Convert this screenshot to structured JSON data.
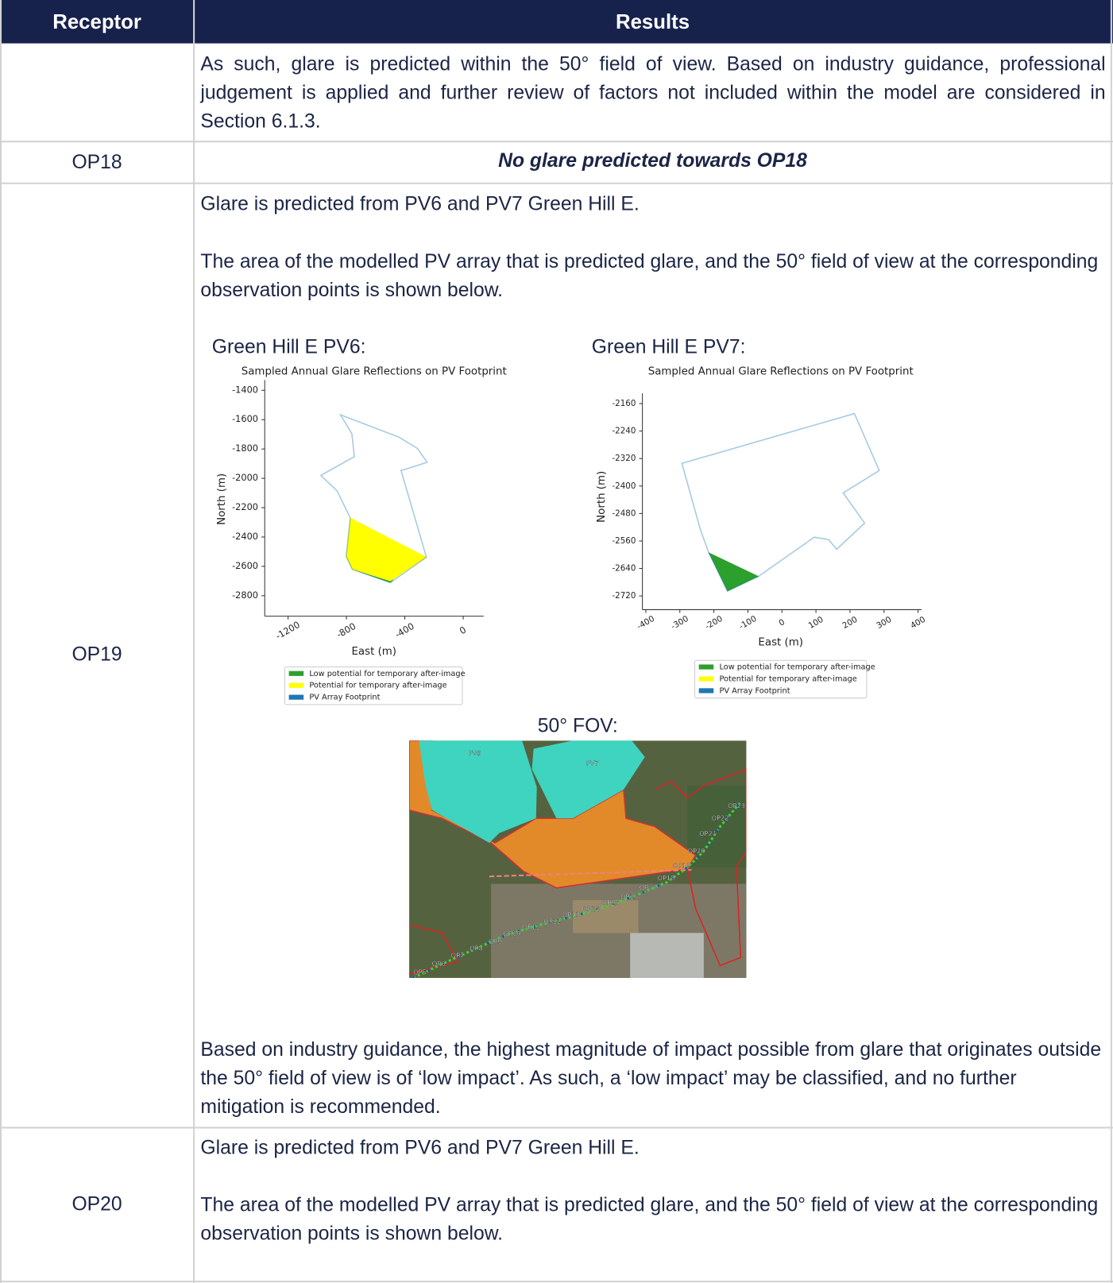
{
  "table": {
    "headers": [
      "Receptor",
      "Results"
    ],
    "rows": [
      {
        "results": {
          "paragraphs": [
            "As such, glare is predicted within the 50° field of view. Based on industry guidance, professional judgement is applied and further review of factors not included within the model are considered in Section 6.1.3."
          ]
        }
      },
      {
        "receptor": "OP18",
        "results": {
          "paragraphs": [
            "No glare predicted towards OP18"
          ]
        }
      },
      {
        "receptor": "OP19",
        "results": {
          "paragraphs": [
            "Glare is predicted from PV6 and PV7 Green Hill E.",
            "The area of the modelled PV array that is predicted glare, and the 50° field of view at the corresponding observation points is shown below."
          ],
          "figures": [
            {
              "heading": "Green Hill E PV6:",
              "type": "polygon",
              "title": "Sampled Annual Glare Reflections on PV Footprint",
              "xlabel": "East (m)",
              "ylabel": "North (m)",
              "xlim": [
                -1360,
                140
              ],
              "ylim": [
                -2940,
                -1330
              ],
              "xticks": [
                -1200,
                -800,
                -400,
                0
              ],
              "yticks": [
                -1400,
                -1600,
                -1800,
                -2000,
                -2200,
                -2400,
                -2600,
                -2800
              ],
              "series": [
                {
                  "name": "Low potential for temporary after-image",
                  "color": "#2ca02c",
                  "x": [
                    -802,
                    -760,
                    -499,
                    -480,
                    -740
                  ],
                  "y": [
                    -2532,
                    -2620,
                    -2711,
                    -2690,
                    -2600
                  ]
                },
                {
                  "name": "Potential for temporary after-image",
                  "color": "#ffff00",
                  "x": [
                    -774,
                    -802,
                    -760,
                    -499,
                    -252
                  ],
                  "y": [
                    -2270,
                    -2532,
                    -2620,
                    -2700,
                    -2538
                  ]
                },
                {
                  "name": "PV Array Footprint",
                  "color": "#1f77b4",
                  "x": [
                    -841,
                    -763,
                    -746,
                    -976,
                    -864,
                    -774,
                    -802,
                    -760,
                    -499,
                    -252,
                    -426,
                    -247,
                    -314,
                    -443
                  ],
                  "y": [
                    -1567,
                    -1696,
                    -1852,
                    -1980,
                    -2086,
                    -2270,
                    -2532,
                    -2620,
                    -2711,
                    -2538,
                    -1947,
                    -1891,
                    -1796,
                    -1718
                  ]
                }
              ]
            },
            {
              "heading": "Green Hill E PV7:",
              "type": "polygon",
              "title": "Sampled Annual Glare Reflections on PV Footprint",
              "xlabel": "East (m)",
              "ylabel": "North (m)",
              "xlim": [
                -410,
                410
              ],
              "ylim": [
                -2760,
                -2130
              ],
              "xticks": [
                -400,
                -300,
                -200,
                -100,
                0,
                100,
                200,
                300,
                400
              ],
              "yticks": [
                -2160,
                -2240,
                -2320,
                -2400,
                -2480,
                -2560,
                -2640,
                -2720
              ],
              "series": [
                {
                  "name": "Low potential for temporary after-image",
                  "color": "#2ca02c",
                  "x": [
                    -215,
                    -160,
                    -69
                  ],
                  "y": [
                    -2594,
                    -2706,
                    -2663
                  ]
                },
                {
                  "name": "Potential for temporary after-image",
                  "color": "#ffff00",
                  "x": [],
                  "y": []
                },
                {
                  "name": "PV Array Footprint",
                  "color": "#1f77b4",
                  "x": [
                    -294,
                    213,
                    286,
                    180,
                    243,
                    161,
                    137,
                    95,
                    -69,
                    -160,
                    -215,
                    -239
                  ],
                  "y": [
                    -2334,
                    -2189,
                    -2355,
                    -2420,
                    -2508,
                    -2584,
                    -2556,
                    -2549,
                    -2663,
                    -2706,
                    -2594,
                    -2529
                  ]
                }
              ]
            }
          ],
          "fov": {
            "heading": "50° FOV:",
            "labels": [
              "PV6",
              "PV7",
              "OP23",
              "OP22",
              "OP21",
              "OP20",
              "OP19",
              "OP18",
              "OP17",
              "OP16",
              "OP15",
              "OP14",
              "OP13",
              "OP12",
              "OP11",
              "OP10",
              "OP9",
              "OP8",
              "OP7",
              "OP6",
              "OP5"
            ]
          },
          "closing": [
            "Based on industry guidance, the highest magnitude of impact possible from glare that originates outside the 50° field of view is of ‘low impact’. As such, a ‘low impact’ may be classified, and no further mitigation is recommended."
          ]
        }
      },
      {
        "receptor": "OP20",
        "results": {
          "paragraphs": [
            "Glare is predicted from PV6 and PV7 Green Hill E.",
            "The area of the modelled PV array that is predicted glare, and the 50° field of view at the corresponding observation points is shown below."
          ]
        }
      }
    ]
  }
}
